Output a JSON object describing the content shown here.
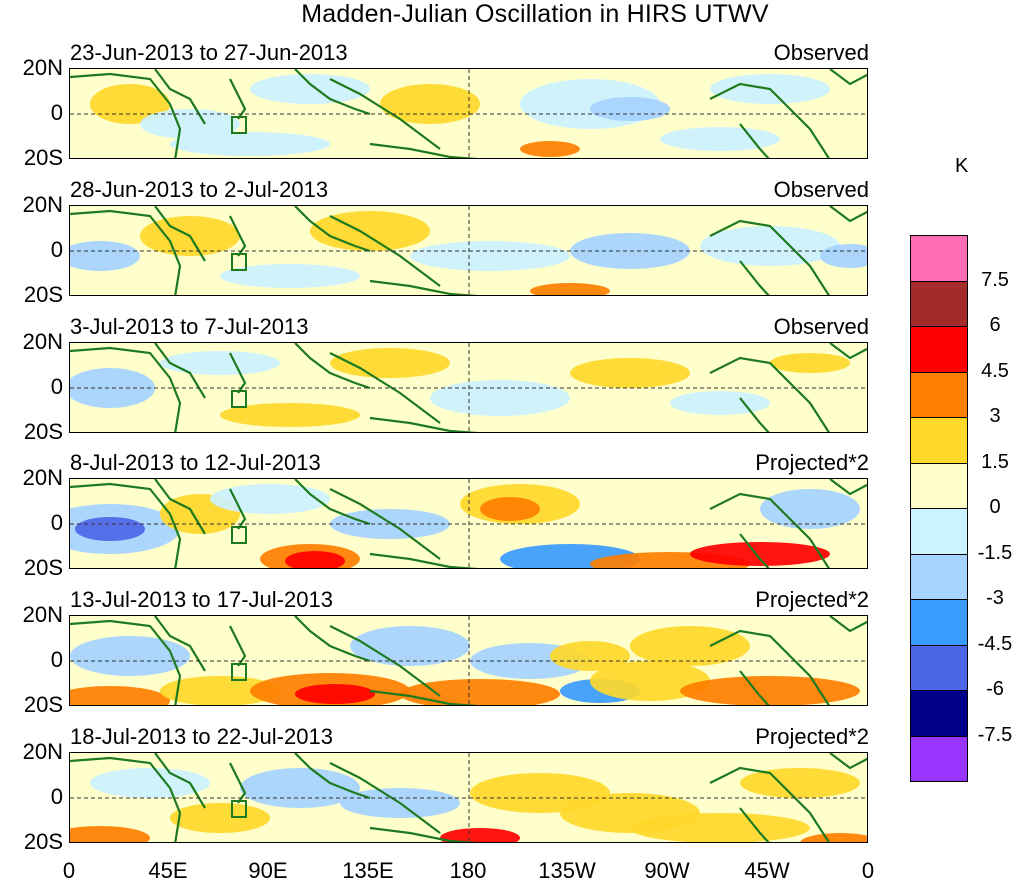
{
  "title": "Madden-Julian Oscillation in HIRS UTWV",
  "colorbar": {
    "unit": "K",
    "colors": [
      "#ff6eb4",
      "#a52a2a",
      "#ff0000",
      "#ff7f00",
      "#ffd82a",
      "#ffffcc",
      "#ccf2ff",
      "#a5d2ff",
      "#3a9bff",
      "#4c66e6",
      "#00008b",
      "#9933ff"
    ],
    "labels": [
      "7.5",
      "6",
      "4.5",
      "3",
      "1.5",
      "0",
      "-1.5",
      "-3",
      "-4.5",
      "-6",
      "-7.5"
    ]
  },
  "axes": {
    "y_ticks": [
      "20N",
      "0",
      "20S"
    ],
    "x_ticks": [
      "0",
      "45E",
      "90E",
      "135E",
      "180",
      "135W",
      "90W",
      "45W",
      "0"
    ]
  },
  "panels": [
    {
      "date": "23-Jun-2013 to 27-Jun-2013",
      "mode": "Observed"
    },
    {
      "date": "28-Jun-2013 to 2-Jul-2013",
      "mode": "Observed"
    },
    {
      "date": "3-Jul-2013 to 7-Jul-2013",
      "mode": "Observed"
    },
    {
      "date": "8-Jul-2013 to 12-Jul-2013",
      "mode": "Projected*2"
    },
    {
      "date": "13-Jul-2013 to 17-Jul-2013",
      "mode": "Projected*2"
    },
    {
      "date": "18-Jul-2013 to 22-Jul-2013",
      "mode": "Projected*2"
    }
  ]
}
